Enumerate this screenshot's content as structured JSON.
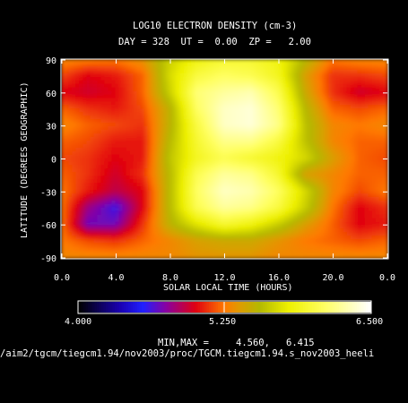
{
  "chart_data": {
    "type": "heatmap",
    "title": "LOG10 ELECTRON DENSITY (cm-3)",
    "subtitle": "DAY = 328  UT =  0.00  ZP =   2.00",
    "xlabel": "SOLAR LOCAL TIME (HOURS)",
    "ylabel": "LATITUDE (DEGREES GEOGRAPHIC)",
    "xticks": [
      "0.0",
      "4.0",
      "8.0",
      "12.0",
      "16.0",
      "20.0",
      "0.0"
    ],
    "yticks": [
      "90",
      "60",
      "30",
      "0",
      "-30",
      "-60",
      "-90"
    ],
    "xlim": [
      0,
      24
    ],
    "ylim": [
      -90,
      90
    ],
    "colorbar": {
      "min_label": "4.000",
      "mid_label": "5.250",
      "max_label": "6.500",
      "range": [
        4.0,
        6.5
      ],
      "stops": [
        {
          "v": 4.0,
          "c": "#000000"
        },
        {
          "v": 4.35,
          "c": "#1a00b0"
        },
        {
          "v": 4.55,
          "c": "#2020ff"
        },
        {
          "v": 4.75,
          "c": "#8a00a0"
        },
        {
          "v": 5.0,
          "c": "#e00010"
        },
        {
          "v": 5.25,
          "c": "#ff7a00"
        },
        {
          "v": 5.4,
          "c": "#d8a000"
        },
        {
          "v": 5.55,
          "c": "#b4b800"
        },
        {
          "v": 5.8,
          "c": "#eef000"
        },
        {
          "v": 6.1,
          "c": "#ffff60"
        },
        {
          "v": 6.5,
          "c": "#ffffff"
        }
      ]
    },
    "minmax_label": "MIN,MAX =",
    "min_value": "4.560,",
    "max_value": "6.415",
    "grid": {
      "x": [
        0,
        2,
        4,
        6,
        8,
        10,
        12,
        14,
        16,
        18,
        20,
        22,
        24
      ],
      "y": [
        90,
        75,
        60,
        45,
        30,
        15,
        0,
        -15,
        -30,
        -45,
        -60,
        -75,
        -90
      ],
      "values": [
        [
          5.3,
          5.28,
          5.25,
          5.35,
          5.65,
          5.85,
          5.95,
          5.95,
          5.85,
          5.55,
          5.25,
          5.3,
          5.3
        ],
        [
          5.15,
          5.0,
          5.05,
          5.2,
          5.7,
          6.0,
          6.1,
          6.05,
          5.9,
          5.4,
          5.1,
          5.1,
          5.15
        ],
        [
          5.0,
          4.95,
          5.0,
          5.2,
          5.65,
          6.15,
          6.25,
          6.3,
          6.05,
          5.45,
          5.1,
          4.95,
          5.0
        ],
        [
          5.2,
          5.1,
          5.05,
          5.15,
          5.5,
          6.1,
          6.35,
          6.4,
          6.15,
          5.55,
          5.2,
          5.15,
          5.2
        ],
        [
          5.3,
          5.2,
          5.15,
          5.1,
          5.5,
          6.0,
          6.35,
          6.4,
          6.2,
          5.6,
          5.3,
          5.25,
          5.3
        ],
        [
          5.2,
          5.15,
          5.05,
          5.05,
          5.55,
          5.95,
          6.2,
          6.2,
          6.0,
          5.6,
          5.3,
          5.2,
          5.2
        ],
        [
          5.15,
          5.1,
          5.0,
          5.05,
          5.6,
          5.9,
          6.05,
          5.95,
          5.85,
          5.7,
          5.4,
          5.2,
          5.15
        ],
        [
          5.2,
          5.1,
          4.95,
          5.1,
          5.55,
          6.05,
          6.25,
          6.2,
          5.95,
          5.4,
          5.3,
          5.2,
          5.2
        ],
        [
          5.25,
          5.05,
          4.9,
          5.0,
          5.55,
          6.1,
          6.35,
          6.3,
          6.1,
          5.7,
          5.3,
          5.15,
          5.25
        ],
        [
          5.25,
          4.8,
          4.6,
          5.0,
          5.55,
          6.05,
          6.25,
          6.2,
          6.0,
          5.65,
          5.25,
          5.0,
          5.1
        ],
        [
          5.25,
          4.7,
          4.7,
          5.1,
          5.5,
          5.75,
          5.95,
          5.85,
          5.65,
          5.4,
          5.2,
          5.0,
          5.05
        ],
        [
          5.25,
          5.15,
          5.1,
          5.2,
          5.3,
          5.4,
          5.45,
          5.45,
          5.35,
          5.25,
          5.2,
          5.15,
          5.2
        ],
        [
          5.3,
          5.3,
          5.3,
          5.3,
          5.3,
          5.35,
          5.35,
          5.35,
          5.3,
          5.3,
          5.3,
          5.3,
          5.3
        ]
      ]
    }
  },
  "footer_path": "/aim2/tgcm/tiegcm1.94/nov2003/proc/TGCM.tiegcm1.94.s_nov2003_heeli"
}
